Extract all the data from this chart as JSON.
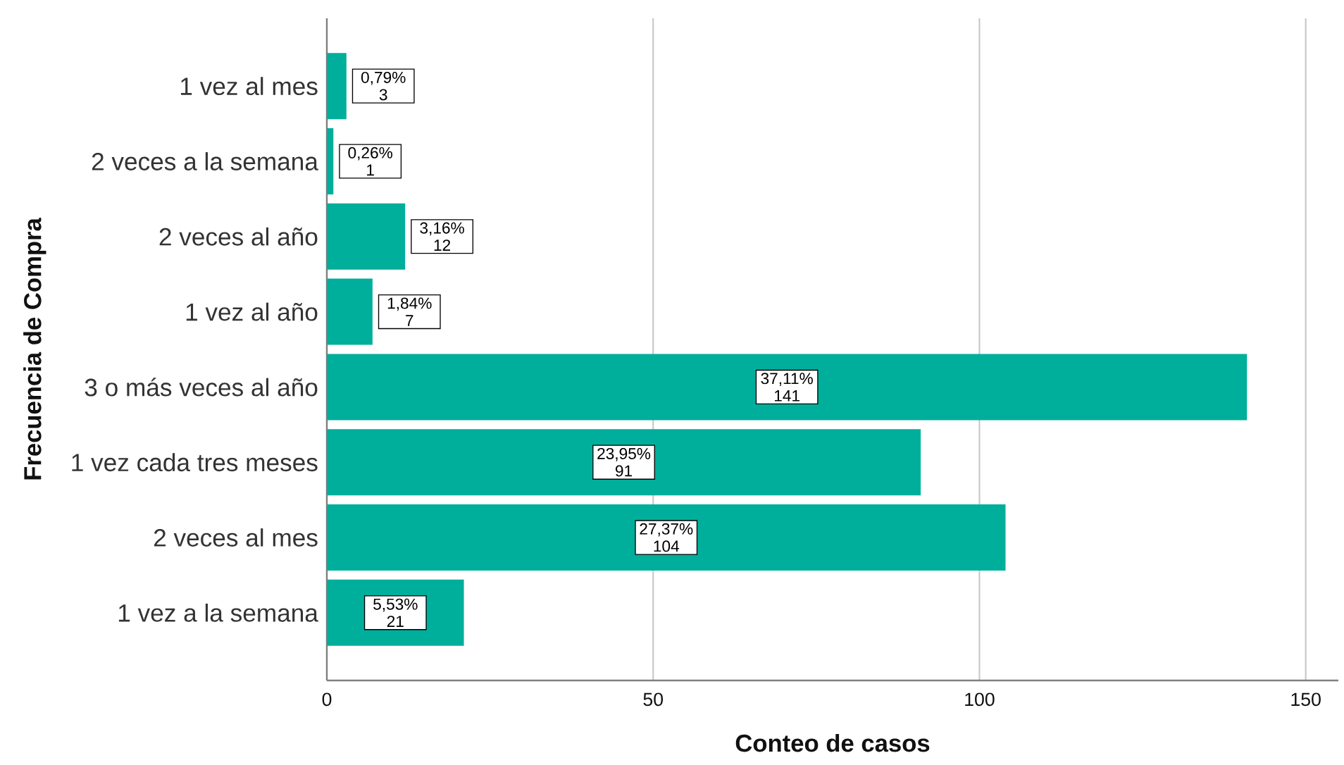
{
  "chart_data": {
    "type": "bar",
    "orientation": "horizontal",
    "xlabel": "Conteo de casos",
    "ylabel": "Frecuencia de Compra",
    "categories": [
      "1 vez al mes",
      "2 veces a la semana",
      "2 veces al año",
      "1 vez al año",
      "3 o más veces al año",
      "1 vez cada tres meses",
      "2 veces al mes",
      "1 vez a la semana"
    ],
    "values": [
      3,
      1,
      12,
      7,
      141,
      91,
      104,
      21
    ],
    "value_labels": [
      "0,79% 3",
      "0,26% 1",
      "3,16% 12",
      "1,84% 7",
      "37,11% 141",
      "23,95% 91",
      "27,37% 104",
      "5,53% 21"
    ],
    "color": "#00ae9c",
    "xlim": [
      0,
      155
    ],
    "xticks": [
      0,
      50,
      100,
      150
    ],
    "grid": "x"
  }
}
